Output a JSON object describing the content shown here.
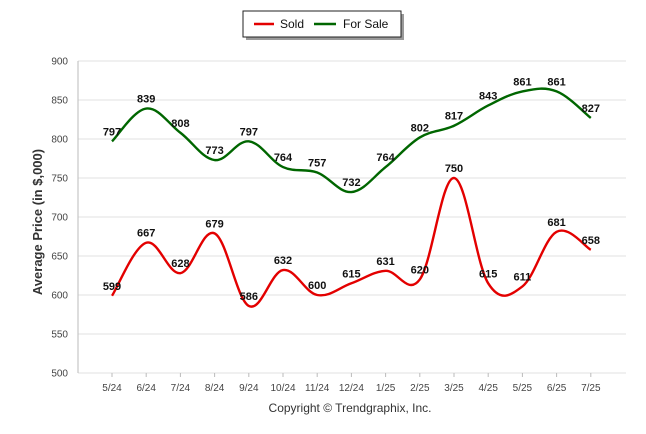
{
  "chart_data": {
    "type": "line",
    "categories": [
      "5/24",
      "6/24",
      "7/24",
      "8/24",
      "9/24",
      "10/24",
      "11/24",
      "12/24",
      "1/25",
      "2/25",
      "3/25",
      "4/25",
      "5/25",
      "6/25",
      "7/25"
    ],
    "series": [
      {
        "name": "Sold",
        "color": "#e30000",
        "values": [
          599,
          667,
          628,
          679,
          586,
          632,
          600,
          615,
          631,
          620,
          750,
          615,
          611,
          681,
          658
        ]
      },
      {
        "name": "For Sale",
        "color": "#006600",
        "values": [
          797,
          839,
          808,
          773,
          797,
          764,
          757,
          732,
          764,
          802,
          817,
          843,
          861,
          861,
          827
        ]
      }
    ],
    "ylabel": "Average Price (in $,000)",
    "ylim": [
      500,
      900
    ],
    "yticks": [
      500,
      550,
      600,
      650,
      700,
      750,
      800,
      850,
      900
    ],
    "grid": true,
    "legend_position": "top-center",
    "credit": "Copyright © Trendgraphix, Inc."
  }
}
